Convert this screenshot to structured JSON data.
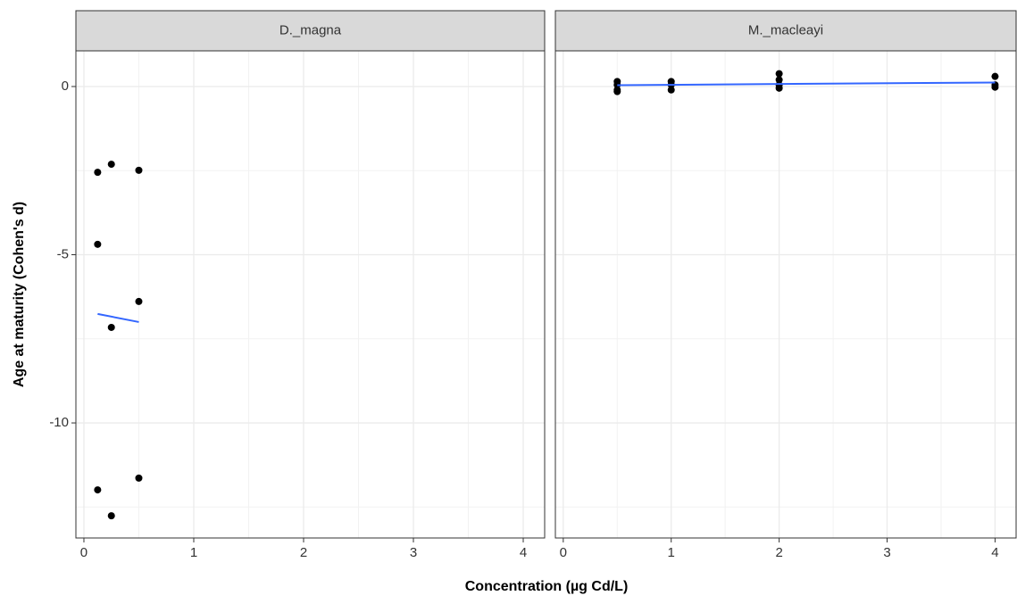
{
  "chart_data": [
    {
      "type": "scatter",
      "title": "D._magna",
      "x": [
        0.125,
        0.25,
        0.5,
        0.125,
        0.5,
        0.25,
        0.125,
        0.5,
        0.25
      ],
      "values": [
        -2.55,
        -2.31,
        -2.49,
        -4.69,
        -6.39,
        -7.16,
        -11.99,
        -11.64,
        -12.76
      ],
      "color": "#000000",
      "fit": {
        "x": [
          0.125,
          0.5
        ],
        "values": [
          -6.76,
          -7.0
        ],
        "color": "#3366ff"
      },
      "xlim": [
        -0.073,
        4.195
      ],
      "ylim": [
        -13.42,
        1.06
      ],
      "xticks": [
        0,
        1,
        2,
        3,
        4
      ],
      "yticks": [
        -10,
        -5,
        0
      ],
      "grid": true
    },
    {
      "type": "scatter",
      "title": "M._macleayi",
      "x": [
        0.5,
        0.5,
        0.5,
        0.5,
        1,
        1,
        1,
        2,
        2,
        2,
        2,
        4,
        4,
        4
      ],
      "values": [
        0.15,
        0.05,
        -0.1,
        -0.15,
        0.15,
        0.05,
        -0.1,
        0.38,
        0.2,
        0.05,
        -0.05,
        0.3,
        0.05,
        -0.02
      ],
      "color": "#000000",
      "fit": {
        "x": [
          0.5,
          4
        ],
        "values": [
          0.04,
          0.12
        ],
        "color": "#3366ff"
      },
      "xlim": [
        -0.073,
        4.195
      ],
      "ylim": [
        -13.42,
        1.06
      ],
      "xticks": [
        0,
        1,
        2,
        3,
        4
      ],
      "yticks": [
        -10,
        -5,
        0
      ],
      "grid": true
    }
  ],
  "x_label": "Concentration (µg Cd/L)",
  "y_label": "Age at maturity (Cohen's d)"
}
